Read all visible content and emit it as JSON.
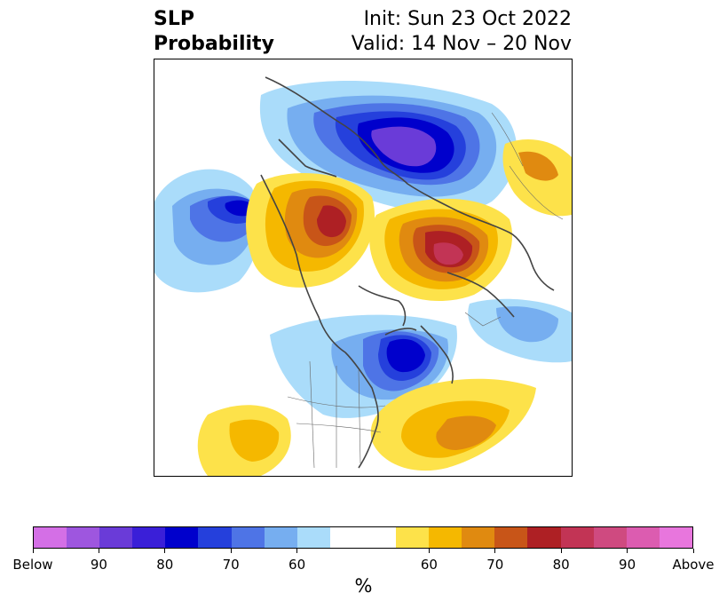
{
  "title": {
    "left_line1": "SLP",
    "left_line2": "Probability",
    "right_line1": "Init: Sun 23 Oct 2022",
    "right_line2": "Valid: 14 Nov – 20 Nov"
  },
  "map": {
    "projection": "north-polar-stereographic",
    "region": "Northern Hemisphere",
    "features": [
      "coastlines",
      "country-borders",
      "us-state-borders"
    ],
    "anomalies": [
      {
        "region": "Arctic Ocean / northern Siberia",
        "category": "below",
        "max_probability": "90"
      },
      {
        "region": "Northeast Pacific / Gulf of Alaska",
        "category": "below",
        "max_probability": "80"
      },
      {
        "region": "Hudson Bay / Labrador",
        "category": "below",
        "max_probability": "80"
      },
      {
        "region": "Eastern Siberia / Bering region",
        "category": "above",
        "max_probability": "80"
      },
      {
        "region": "Scandinavia / Barents Sea",
        "category": "above",
        "max_probability": "90"
      },
      {
        "region": "Central North Atlantic",
        "category": "above",
        "max_probability": "70"
      },
      {
        "region": "Northwest Africa / Iberia",
        "category": "above",
        "max_probability": "60"
      }
    ]
  },
  "colorbar": {
    "colors": [
      "#d46fe6",
      "#9e56df",
      "#6a3bd8",
      "#3a1fd8",
      "#0000cc",
      "#2540dc",
      "#4e74e6",
      "#76aef0",
      "#aadcfa",
      "#ffffff",
      "#ffffff",
      "#fde24a",
      "#f5b800",
      "#e08a10",
      "#c85518",
      "#ae2024",
      "#c23455",
      "#cf4a80",
      "#dc5cb0",
      "#e876dd"
    ],
    "tick_labels": [
      "Below",
      "90",
      "80",
      "70",
      "60",
      "60",
      "70",
      "80",
      "90",
      "Above"
    ],
    "tick_fractions": [
      0.0,
      0.1,
      0.2,
      0.3,
      0.4,
      0.6,
      0.7,
      0.8,
      0.9,
      1.0
    ],
    "unit_label": "%"
  }
}
